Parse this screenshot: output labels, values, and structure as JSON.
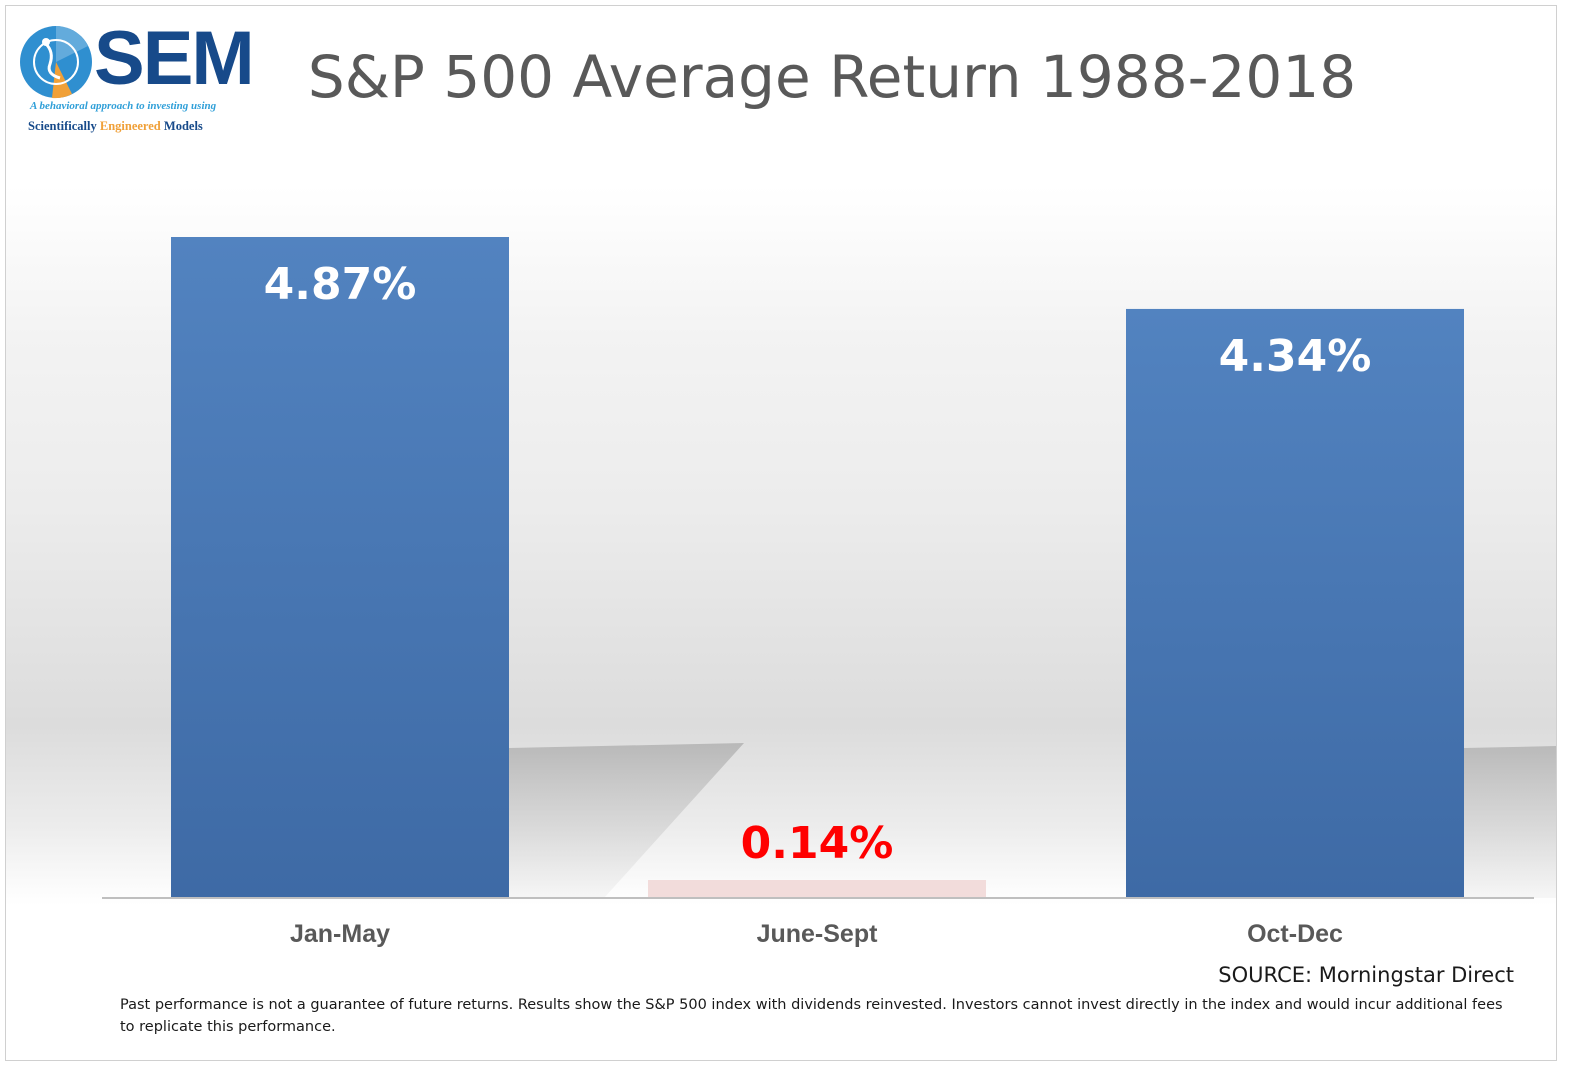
{
  "logo": {
    "name": "SEM",
    "tagline_line1": "A behavioral approach to investing using",
    "tagline_line2": [
      "Scientifically ",
      "Engineered",
      " Models"
    ]
  },
  "chart_data": {
    "type": "bar",
    "title": "S&P 500 Average Return 1988-2018",
    "categories": [
      "Jan-May",
      "June-Sept",
      "Oct-Dec"
    ],
    "values": [
      4.87,
      0.14,
      4.34
    ],
    "labels": [
      "4.87%",
      "0.14%",
      "4.34%"
    ],
    "ylim": [
      0,
      4.87
    ],
    "grid": false,
    "legend": "none",
    "colors": {
      "positive_bar": "#4f81bd",
      "highlight_bar": "#f2dcdb",
      "positive_label": "#ffffff",
      "highlight_label": "#ff0000"
    }
  },
  "source": "SOURCE: Morningstar Direct",
  "disclaimer": "Past performance is not a guarantee of future returns. Results show the S&P 500 index with dividends reinvested. Investors cannot invest directly in the index and would incur additional fees to replicate this performance."
}
